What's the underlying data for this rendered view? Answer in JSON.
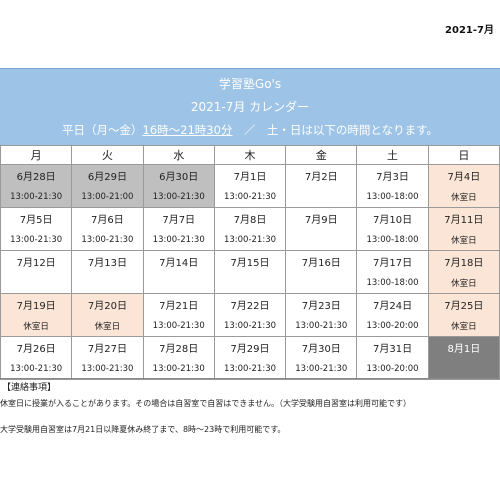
{
  "header": {
    "top_label": "2021-7月"
  },
  "banner": {
    "line1": "学習塾Go's",
    "line2": "2021-7月 カレンダー",
    "line3_prefix": "平日（月～金）",
    "line3_hours": "16時～21時30分",
    "line3_suffix": "／　土・日は以下の時間となります。"
  },
  "weekdays": [
    "月",
    "火",
    "水",
    "木",
    "金",
    "土",
    "日"
  ],
  "weeks": [
    [
      {
        "date": "6月28日",
        "info": "13:00-21:30",
        "style": "gray"
      },
      {
        "date": "6月29日",
        "info": "13:00-21:00",
        "style": "gray"
      },
      {
        "date": "6月30日",
        "info": "13:00-21:30",
        "style": "gray"
      },
      {
        "date": "7月1日",
        "info": "13:00-21:30",
        "style": ""
      },
      {
        "date": "7月2日",
        "info": "",
        "style": ""
      },
      {
        "date": "7月3日",
        "info": "13:00-18:00",
        "style": ""
      },
      {
        "date": "7月4日",
        "info": "休室日",
        "style": "peach"
      }
    ],
    [
      {
        "date": "7月5日",
        "info": "13:00-21:30",
        "style": ""
      },
      {
        "date": "7月6日",
        "info": "13:00-21:30",
        "style": ""
      },
      {
        "date": "7月7日",
        "info": "13:00-21:30",
        "style": ""
      },
      {
        "date": "7月8日",
        "info": "13:00-21:30",
        "style": ""
      },
      {
        "date": "7月9日",
        "info": "",
        "style": ""
      },
      {
        "date": "7月10日",
        "info": "13:00-18:00",
        "style": ""
      },
      {
        "date": "7月11日",
        "info": "休室日",
        "style": "peach"
      }
    ],
    [
      {
        "date": "7月12日",
        "info": "",
        "style": ""
      },
      {
        "date": "7月13日",
        "info": "",
        "style": ""
      },
      {
        "date": "7月14日",
        "info": "",
        "style": ""
      },
      {
        "date": "7月15日",
        "info": "",
        "style": ""
      },
      {
        "date": "7月16日",
        "info": "",
        "style": ""
      },
      {
        "date": "7月17日",
        "info": "13:00-18:00",
        "style": ""
      },
      {
        "date": "7月18日",
        "info": "休室日",
        "style": "peach"
      }
    ],
    [
      {
        "date": "7月19日",
        "info": "休室日",
        "style": "peach"
      },
      {
        "date": "7月20日",
        "info": "休室日",
        "style": "peach"
      },
      {
        "date": "7月21日",
        "info": "13:00-21:30",
        "style": ""
      },
      {
        "date": "7月22日",
        "info": "13:00-21:30",
        "style": ""
      },
      {
        "date": "7月23日",
        "info": "13:00-21:30",
        "style": ""
      },
      {
        "date": "7月24日",
        "info": "13:00-20:00",
        "style": ""
      },
      {
        "date": "7月25日",
        "info": "休室日",
        "style": "peach"
      }
    ],
    [
      {
        "date": "7月26日",
        "info": "13:00-21:30",
        "style": ""
      },
      {
        "date": "7月27日",
        "info": "13:00-21:30",
        "style": ""
      },
      {
        "date": "7月28日",
        "info": "13:00-21:30",
        "style": ""
      },
      {
        "date": "7月29日",
        "info": "13:00-21:30",
        "style": ""
      },
      {
        "date": "7月30日",
        "info": "13:00-21:30",
        "style": ""
      },
      {
        "date": "7月31日",
        "info": "13:00-20:00",
        "style": ""
      },
      {
        "date": "8月1日",
        "info": "",
        "style": "dark"
      }
    ]
  ],
  "notes": {
    "title": "【連絡事項】",
    "lines": [
      "休室日に授業が入ることがあります。その場合は自習室で自習はできません。（大学受験用自習室は利用可能です）",
      "大学受験用自習室は7月21日以降夏休み終了まで、8時～23時で利用可能です。"
    ]
  },
  "colors": {
    "banner_blue": "#9dc3e6",
    "past_gray": "#bfbfbf",
    "closed_peach": "#fbe5d6",
    "next_month_dark": "#7f7f7f"
  }
}
